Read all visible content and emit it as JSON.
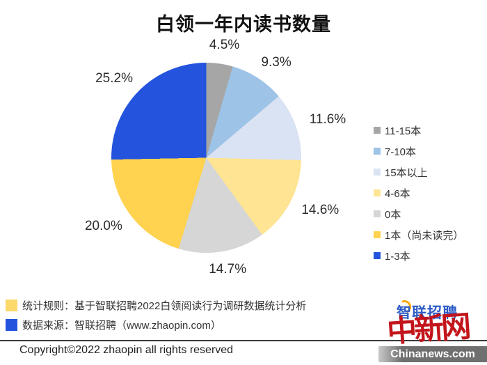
{
  "title": "白领一年内读书数量",
  "chart_data": {
    "type": "pie",
    "title": "白领一年内读书数量",
    "direction": "clockwise",
    "start_angle_deg": 0,
    "legend_position": "right",
    "slices": [
      {
        "label": "11-15本",
        "value": 4.5,
        "display": "4.5%",
        "color": "#a6a6a6"
      },
      {
        "label": "7-10本",
        "value": 9.3,
        "display": "9.3%",
        "color": "#9dc3e6"
      },
      {
        "label": "15本以上",
        "value": 11.6,
        "display": "11.6%",
        "color": "#dae3f3"
      },
      {
        "label": "4-6本",
        "value": 14.6,
        "display": "14.6%",
        "color": "#ffe493"
      },
      {
        "label": "0本",
        "value": 14.7,
        "display": "14.7%",
        "color": "#d6d6d6"
      },
      {
        "label": "1本（尚未读完）",
        "value": 20.0,
        "display": "20.0%",
        "color": "#ffd24f"
      },
      {
        "label": "1-3本",
        "value": 25.2,
        "display": "25.2%",
        "color": "#2454dd"
      }
    ]
  },
  "footnotes": [
    {
      "marker_color": "#fbd96a",
      "text": "统计规则：基于智联招聘2022白领阅读行为调研数据统计分析"
    },
    {
      "marker_color": "#2454dd",
      "text": "数据来源：智联招聘（www.zhaopin.com）"
    }
  ],
  "copyright": "Copyright©2022 zhaopin all rights reserved",
  "logos": {
    "zhaopin_text": "智联招聘",
    "chinanews_cn": "中新网",
    "chinanews_en": "Chinanews.com"
  },
  "colors": {
    "brand_blue": "#2454dd",
    "brand_yellow": "#ffd24f",
    "chinanews_red": "#c2151b",
    "chinanews_bar_gray": "#6f6f6f"
  }
}
